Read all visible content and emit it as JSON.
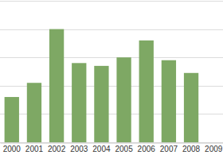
{
  "chart_data": {
    "type": "bar",
    "categories": [
      "2000",
      "2001",
      "2002",
      "2003",
      "2004",
      "2005",
      "2006",
      "2007",
      "2008",
      "2009"
    ],
    "values": [
      1.6,
      2.1,
      4.0,
      2.8,
      2.7,
      3.0,
      3.6,
      2.9,
      2.45,
      null
    ],
    "color": "#7ea864",
    "ylim": [
      0,
      5
    ],
    "yticks": [
      0,
      1,
      2,
      3,
      4,
      5
    ],
    "grid": true,
    "tick_labels": "x"
  }
}
